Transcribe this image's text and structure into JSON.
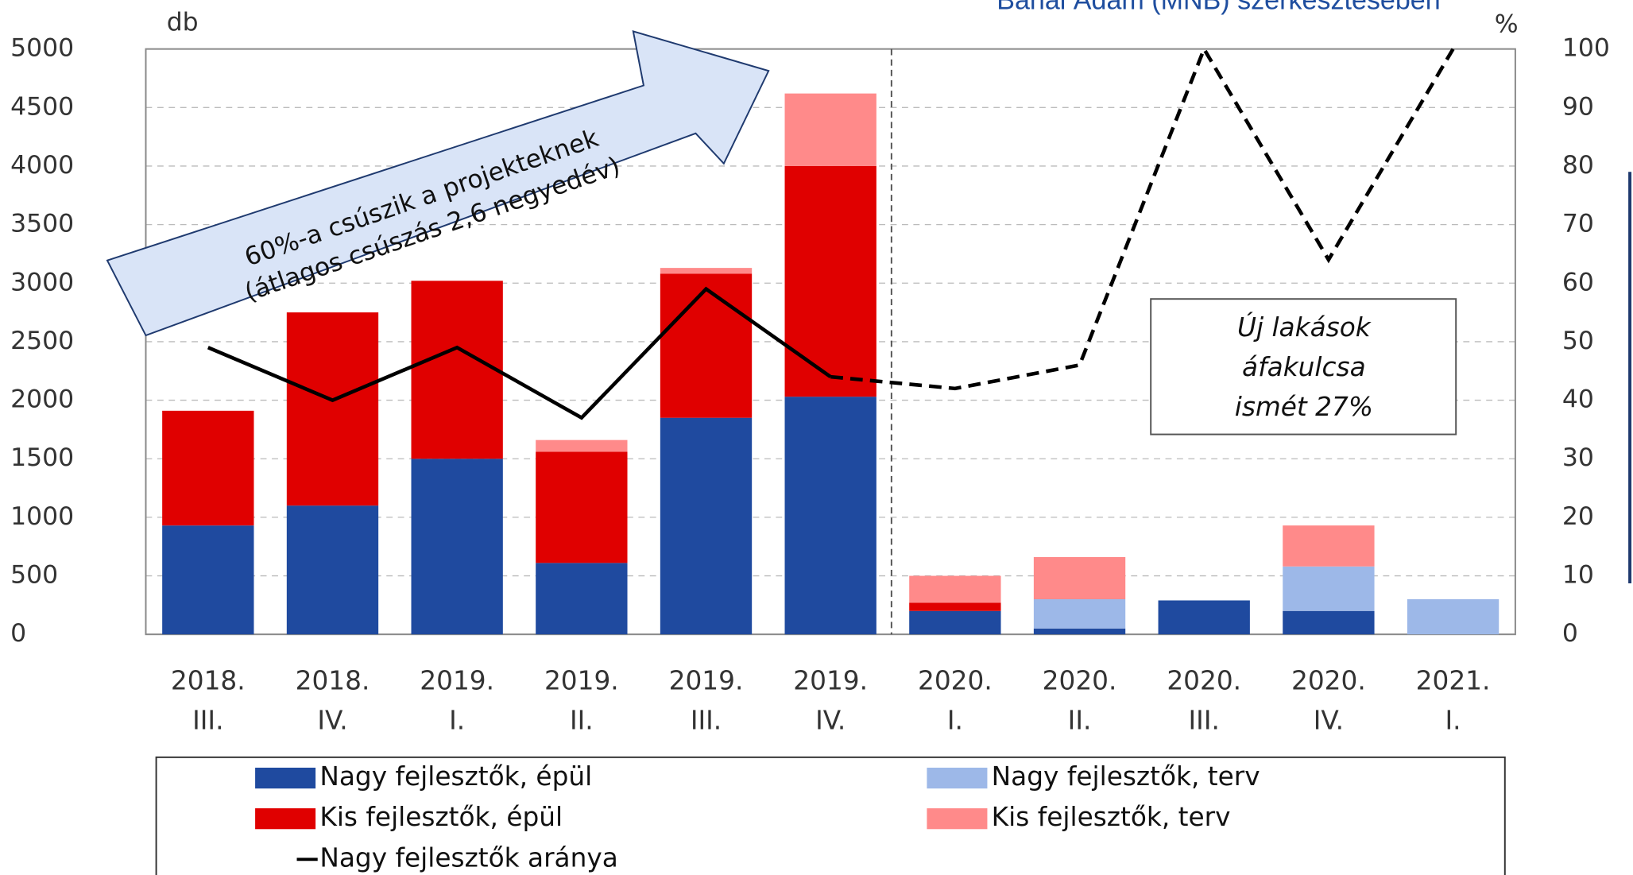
{
  "chart_data": {
    "type": "bar",
    "stacked": true,
    "subtitle": "Banai Ádám (MNB) szerkesztésében",
    "ylabel": "db",
    "y2label": "%",
    "categories": [
      [
        "2018.",
        "III."
      ],
      [
        "2018.",
        "IV."
      ],
      [
        "2019.",
        "I."
      ],
      [
        "2019.",
        "II."
      ],
      [
        "2019.",
        "III."
      ],
      [
        "2019.",
        "IV."
      ],
      [
        "2020.",
        "I."
      ],
      [
        "2020.",
        "II."
      ],
      [
        "2020.",
        "III."
      ],
      [
        "2020.",
        "IV."
      ],
      [
        "2021.",
        "I."
      ]
    ],
    "series": [
      {
        "name": "Nagy fejlesztők, épül",
        "color": "#1f4a9f",
        "values": [
          930,
          1100,
          1500,
          610,
          1850,
          2030,
          200,
          50,
          290,
          200,
          0
        ]
      },
      {
        "name": "Kis fejlesztők, épül",
        "color": "#e00000",
        "values": [
          980,
          1650,
          1520,
          950,
          1230,
          1970,
          70,
          0,
          0,
          0,
          0
        ]
      },
      {
        "name": "Nagy fejlesztők, terv",
        "color": "#9db8e8",
        "values": [
          0,
          0,
          0,
          0,
          0,
          0,
          0,
          250,
          0,
          380,
          300
        ]
      },
      {
        "name": "Kis fejlesztők, terv",
        "color": "#ff8a8a",
        "values": [
          0,
          0,
          0,
          100,
          50,
          620,
          230,
          360,
          0,
          350,
          0
        ]
      },
      {
        "name": "Nagy fejlesztők aránya",
        "color": "#000000",
        "type": "line",
        "axis": "y2",
        "dashed_from": 5,
        "values": [
          49,
          40,
          49,
          37,
          59,
          44,
          42,
          46,
          100,
          64,
          100
        ]
      }
    ],
    "ylim": [
      0,
      5000
    ],
    "yticks": [
      0,
      500,
      1000,
      1500,
      2000,
      2500,
      3000,
      3500,
      4000,
      4500,
      5000
    ],
    "y2lim": [
      0,
      100
    ],
    "y2ticks": [
      0,
      10,
      20,
      30,
      40,
      50,
      60,
      70,
      80,
      90,
      100
    ],
    "grid": true,
    "annotations": {
      "arrow": [
        "60%-a csúszik a projekteknek",
        "(átlagos csúszás 2,6 negyedév)"
      ],
      "box": [
        "Új lakások",
        "áfakulcsa",
        "ismét 27%"
      ]
    }
  }
}
